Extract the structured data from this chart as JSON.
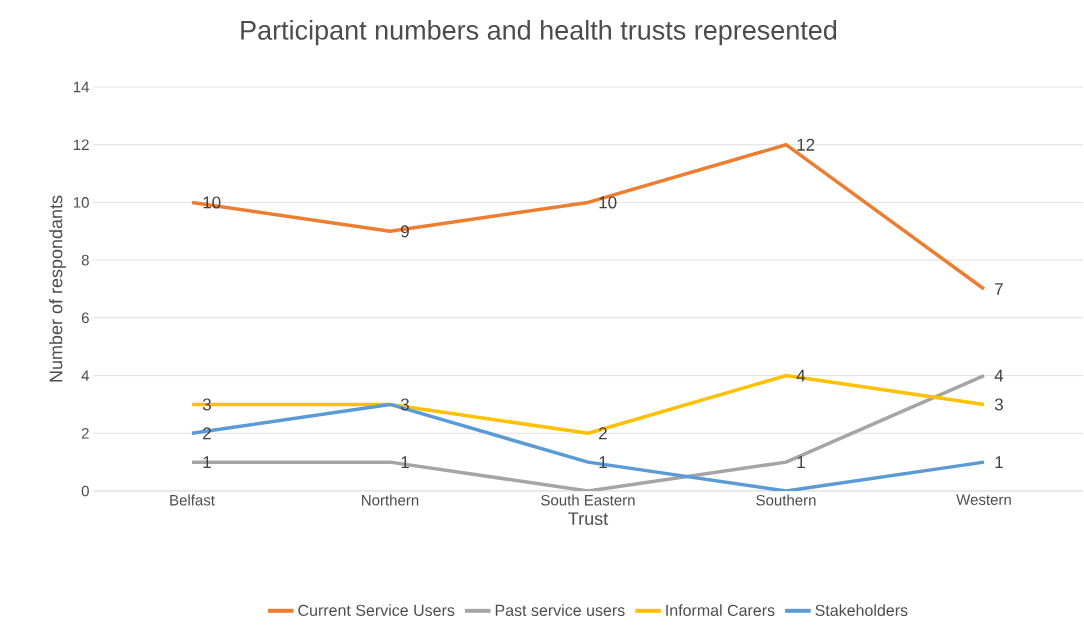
{
  "chart_data": {
    "type": "line",
    "title": "Participant numbers and health trusts represented",
    "xlabel": "Trust",
    "ylabel": "Number of respondants",
    "categories": [
      "Belfast",
      "Northern",
      "South Eastern",
      "Southern",
      "Western"
    ],
    "series": [
      {
        "name": "Current Service Users",
        "color": "#ed7d31",
        "values": [
          10,
          9,
          10,
          12,
          7
        ],
        "value_labels": [
          "10",
          "9",
          "10",
          "12",
          "7"
        ]
      },
      {
        "name": "Past service users",
        "color": "#a5a5a5",
        "values": [
          1,
          1,
          0,
          1,
          4
        ],
        "value_labels": [
          "1",
          "1",
          null,
          "1",
          "4"
        ]
      },
      {
        "name": "Informal Carers",
        "color": "#ffc000",
        "values": [
          3,
          3,
          2,
          4,
          3
        ],
        "value_labels": [
          "3",
          "3",
          "2",
          "4",
          "3"
        ]
      },
      {
        "name": "Stakeholders",
        "color": "#5b9bd5",
        "values": [
          2,
          3,
          1,
          0,
          1
        ],
        "value_labels": [
          "2",
          null,
          "1",
          null,
          "1"
        ]
      }
    ],
    "ylim": [
      0,
      14
    ],
    "yticks": [
      0,
      2,
      4,
      6,
      8,
      10,
      12,
      14
    ],
    "grid": "y",
    "legend": "bottom",
    "marker": "none",
    "line_style": "solid"
  }
}
